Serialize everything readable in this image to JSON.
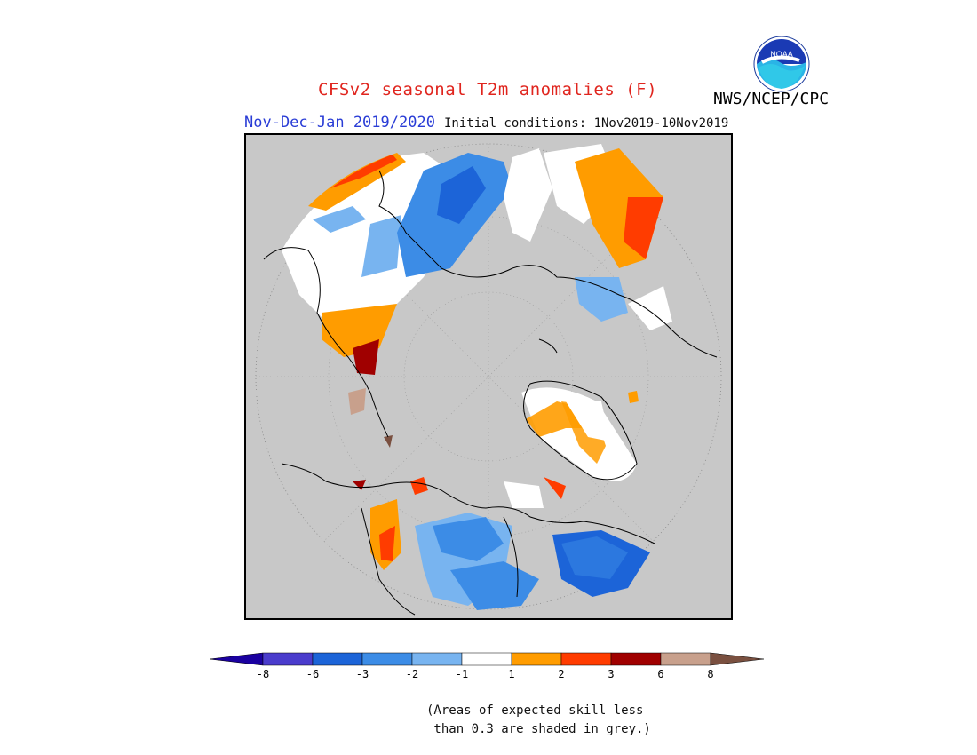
{
  "title": "CFSv2 seasonal T2m anomalies (F)",
  "season": "Nov-Dec-Jan 2019/2020",
  "initial_conditions": "Initial conditions: 1Nov2019-10Nov2019",
  "organization": "NWS/NCEP/CPC",
  "logo_text": "NOAA",
  "colors": {
    "skill_grey": "#c8c8c8",
    "land_lines": "#000000",
    "title": "#e0251e",
    "season": "#2a3dd6"
  },
  "legend": {
    "ticks": [
      "-8",
      "-6",
      "-3",
      "-2",
      "-1",
      "1",
      "2",
      "3",
      "6",
      "8"
    ],
    "colors": [
      "#1a00a0",
      "#4a3ccc",
      "#1c64d8",
      "#3c8ce6",
      "#78b4f0",
      "#ffffff",
      "#ff9c00",
      "#ff3c00",
      "#a00000",
      "#c8a08c",
      "#7a5040"
    ]
  },
  "note": "(Areas of expected skill less\n than 0.3 are shaded in grey.)"
}
